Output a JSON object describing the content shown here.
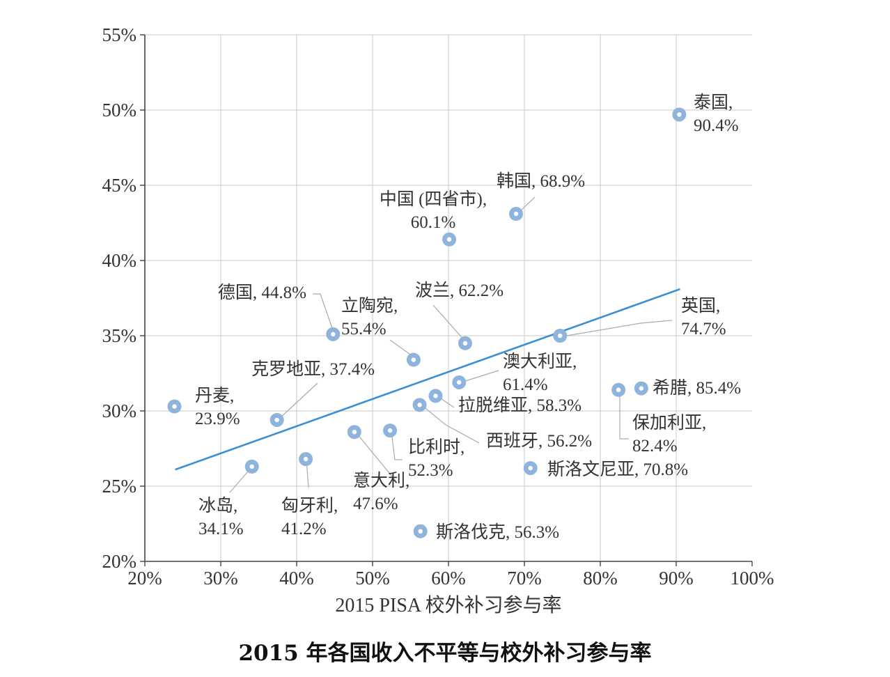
{
  "chart_data": {
    "type": "scatter",
    "title": "2015 年各国收入不平等与校外补习参与率",
    "xlabel": "2015 PISA 校外补习参与率",
    "ylabel": "",
    "xlim": [
      20,
      100
    ],
    "ylim": [
      20,
      55
    ],
    "grid": true,
    "x_ticks": [
      "20%",
      "30%",
      "40%",
      "50%",
      "60%",
      "70%",
      "80%",
      "90%",
      "100%"
    ],
    "y_ticks": [
      "20%",
      "25%",
      "30%",
      "35%",
      "40%",
      "45%",
      "50%",
      "55%"
    ],
    "point_color": "#8fb4dc",
    "trend_color": "#3b8fd0",
    "trendline": {
      "x": [
        24,
        90.5
      ],
      "y": [
        26.1,
        38.1
      ]
    },
    "points": [
      {
        "name": "泰国",
        "x": 90.4,
        "y": 49.7,
        "label_lines": [
          "泰国,",
          "90.4%"
        ]
      },
      {
        "name": "韩国",
        "x": 68.9,
        "y": 43.1,
        "label_lines": [
          "韩国, 68.9%"
        ]
      },
      {
        "name": "中国 (四省市)",
        "x": 60.1,
        "y": 41.4,
        "label_lines": [
          "中国 (四省市),",
          "60.1%"
        ]
      },
      {
        "name": "德国",
        "x": 44.8,
        "y": 35.1,
        "label_lines": [
          "德国, 44.8%"
        ]
      },
      {
        "name": "波兰",
        "x": 62.2,
        "y": 34.5,
        "label_lines": [
          "波兰, 62.2%"
        ]
      },
      {
        "name": "立陶宛",
        "x": 55.4,
        "y": 33.4,
        "label_lines": [
          "立陶宛,",
          "55.4%"
        ]
      },
      {
        "name": "英国",
        "x": 74.7,
        "y": 35.0,
        "label_lines": [
          "英国,",
          "74.7%"
        ]
      },
      {
        "name": "澳大利亚",
        "x": 61.4,
        "y": 31.9,
        "label_lines": [
          "澳大利亚,",
          "61.4%"
        ]
      },
      {
        "name": "希腊",
        "x": 85.4,
        "y": 31.5,
        "label_lines": [
          "希腊, 85.4%"
        ]
      },
      {
        "name": "保加利亚",
        "x": 82.4,
        "y": 31.4,
        "label_lines": [
          "保加利亚,",
          "82.4%"
        ]
      },
      {
        "name": "丹麦",
        "x": 23.9,
        "y": 30.3,
        "label_lines": [
          "丹麦,",
          "23.9%"
        ]
      },
      {
        "name": "克罗地亚",
        "x": 37.4,
        "y": 29.4,
        "label_lines": [
          "克罗地亚, 37.4%"
        ]
      },
      {
        "name": "拉脱维亚",
        "x": 58.3,
        "y": 31.0,
        "label_lines": [
          "拉脱维亚, 58.3%"
        ]
      },
      {
        "name": "西班牙",
        "x": 56.2,
        "y": 30.4,
        "label_lines": [
          "西班牙, 56.2%"
        ]
      },
      {
        "name": "比利时",
        "x": 52.3,
        "y": 28.7,
        "label_lines": [
          "比利时,",
          "52.3%"
        ]
      },
      {
        "name": "意大利",
        "x": 47.6,
        "y": 28.6,
        "label_lines": [
          "意大利,",
          "47.6%"
        ]
      },
      {
        "name": "斯洛文尼亚",
        "x": 70.8,
        "y": 26.2,
        "label_lines": [
          "斯洛文尼亚, 70.8%"
        ]
      },
      {
        "name": "冰岛",
        "x": 34.1,
        "y": 26.3,
        "label_lines": [
          "冰岛,",
          "34.1%"
        ]
      },
      {
        "name": "匈牙利",
        "x": 41.2,
        "y": 26.8,
        "label_lines": [
          "匈牙利,",
          "41.2%"
        ]
      },
      {
        "name": "斯洛伐克",
        "x": 56.3,
        "y": 22.0,
        "label_lines": [
          "斯洛伐克, 56.3%"
        ]
      }
    ]
  }
}
